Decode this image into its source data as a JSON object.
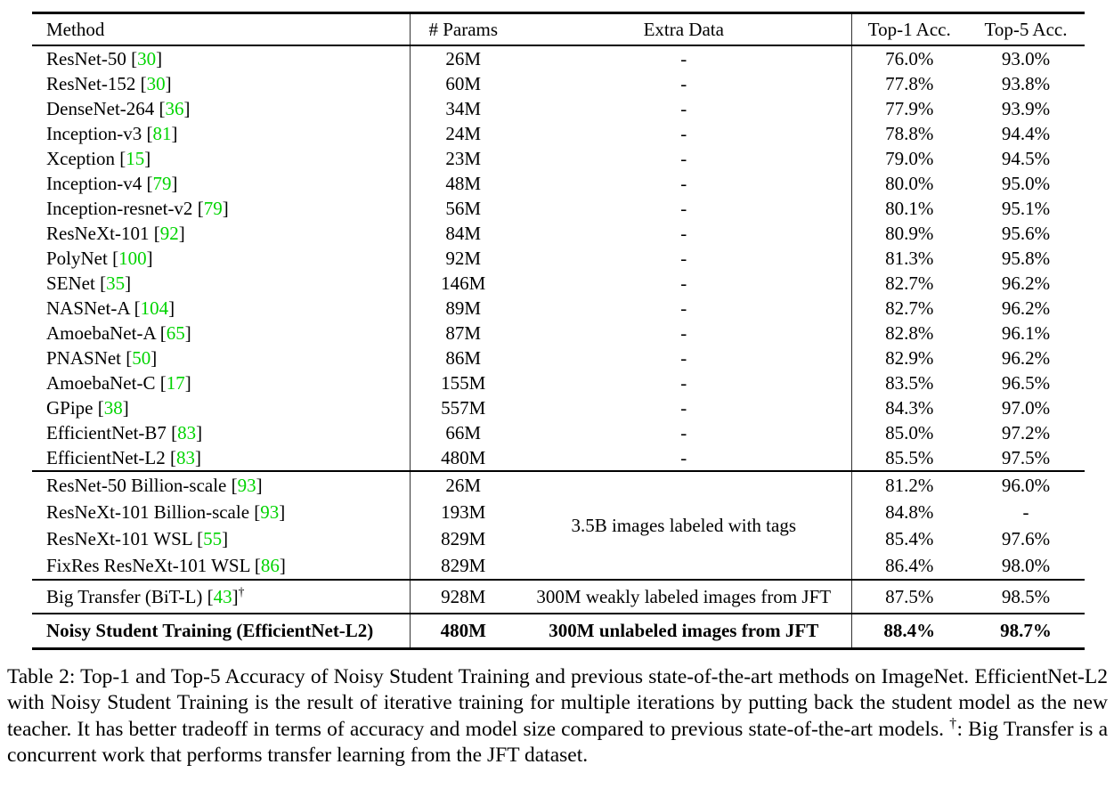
{
  "table": {
    "citation_color": "#00d400",
    "cite_brackets": [
      "[",
      "]"
    ],
    "columns": [
      "Method",
      "# Params",
      "Extra Data",
      "Top-1 Acc.",
      "Top-5 Acc."
    ],
    "sections": [
      {
        "rows": [
          {
            "method": "ResNet-50",
            "cite": "30",
            "params": "26M",
            "extra": "-",
            "top1": "76.0%",
            "top5": "93.0%"
          },
          {
            "method": "ResNet-152",
            "cite": "30",
            "params": "60M",
            "extra": "-",
            "top1": "77.8%",
            "top5": "93.8%"
          },
          {
            "method": "DenseNet-264",
            "cite": "36",
            "params": "34M",
            "extra": "-",
            "top1": "77.9%",
            "top5": "93.9%"
          },
          {
            "method": "Inception-v3",
            "cite": "81",
            "params": "24M",
            "extra": "-",
            "top1": "78.8%",
            "top5": "94.4%"
          },
          {
            "method": "Xception",
            "cite": "15",
            "params": "23M",
            "extra": "-",
            "top1": "79.0%",
            "top5": "94.5%"
          },
          {
            "method": "Inception-v4",
            "cite": "79",
            "params": "48M",
            "extra": "-",
            "top1": "80.0%",
            "top5": "95.0%"
          },
          {
            "method": "Inception-resnet-v2",
            "cite": "79",
            "params": "56M",
            "extra": "-",
            "top1": "80.1%",
            "top5": "95.1%"
          },
          {
            "method": "ResNeXt-101",
            "cite": "92",
            "params": "84M",
            "extra": "-",
            "top1": "80.9%",
            "top5": "95.6%"
          },
          {
            "method": "PolyNet",
            "cite": "100",
            "params": "92M",
            "extra": "-",
            "top1": "81.3%",
            "top5": "95.8%"
          },
          {
            "method": "SENet",
            "cite": "35",
            "params": "146M",
            "extra": "-",
            "top1": "82.7%",
            "top5": "96.2%"
          },
          {
            "method": "NASNet-A",
            "cite": "104",
            "params": "89M",
            "extra": "-",
            "top1": "82.7%",
            "top5": "96.2%"
          },
          {
            "method": "AmoebaNet-A",
            "cite": "65",
            "params": "87M",
            "extra": "-",
            "top1": "82.8%",
            "top5": "96.1%"
          },
          {
            "method": "PNASNet",
            "cite": "50",
            "params": "86M",
            "extra": "-",
            "top1": "82.9%",
            "top5": "96.2%"
          },
          {
            "method": "AmoebaNet-C",
            "cite": "17",
            "params": "155M",
            "extra": "-",
            "top1": "83.5%",
            "top5": "96.5%"
          },
          {
            "method": "GPipe",
            "cite": "38",
            "params": "557M",
            "extra": "-",
            "top1": "84.3%",
            "top5": "97.0%"
          },
          {
            "method": "EfficientNet-B7",
            "cite": "83",
            "params": "66M",
            "extra": "-",
            "top1": "85.0%",
            "top5": "97.2%"
          },
          {
            "method": "EfficientNet-L2",
            "cite": "83",
            "params": "480M",
            "extra": "-",
            "top1": "85.5%",
            "top5": "97.5%"
          }
        ]
      },
      {
        "extra_shared": "3.5B images labeled with tags",
        "rows": [
          {
            "method": "ResNet-50 Billion-scale",
            "cite": "93",
            "params": "26M",
            "top1": "81.2%",
            "top5": "96.0%"
          },
          {
            "method": "ResNeXt-101 Billion-scale",
            "cite": "93",
            "params": "193M",
            "top1": "84.8%",
            "top5": "-"
          },
          {
            "method": "ResNeXt-101 WSL",
            "cite": "55",
            "params": "829M",
            "top1": "85.4%",
            "top5": "97.6%"
          },
          {
            "method": "FixRes ResNeXt-101 WSL",
            "cite": "86",
            "params": "829M",
            "top1": "86.4%",
            "top5": "98.0%"
          }
        ]
      },
      {
        "rows": [
          {
            "method": "Big Transfer (BiT-L)",
            "cite": "43",
            "dagger": "†",
            "params": "928M",
            "extra": "300M weakly labeled images from JFT",
            "top1": "87.5%",
            "top5": "98.5%"
          }
        ]
      },
      {
        "bold": true,
        "rows": [
          {
            "method": "Noisy Student Training (EfficientNet-L2)",
            "params": "480M",
            "extra": "300M unlabeled images from JFT",
            "top1": "88.4%",
            "top5": "98.7%"
          }
        ]
      }
    ]
  },
  "caption": {
    "part1": "Table 2:  Top-1 and Top-5 Accuracy of Noisy Student Training and previous state-of-the-art methods on ImageNet. EfficientNet-L2 with Noisy Student Training is the result of iterative training for multiple iterations by putting back the student model as the new teacher. It has better tradeoff in terms of accuracy and model size compared to previous state-of-the-art models. ",
    "dagger": "†",
    "part2": ": Big Transfer is a concurrent work that performs transfer learning from the JFT dataset."
  }
}
